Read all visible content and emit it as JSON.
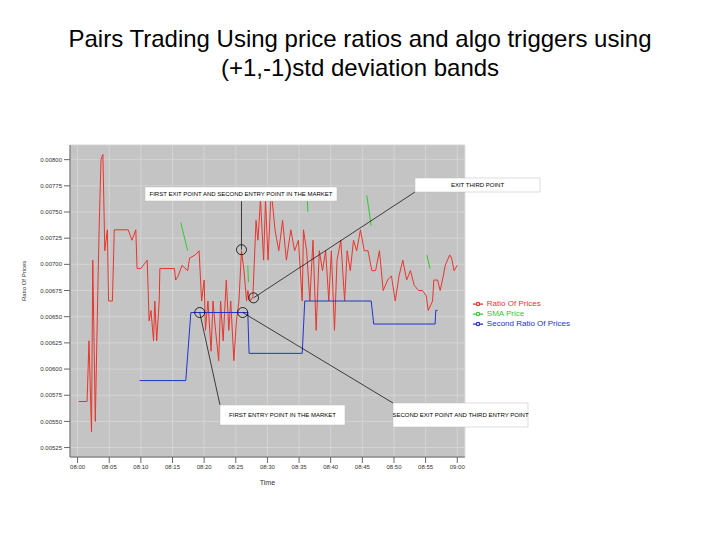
{
  "title": "Pairs Trading Using price ratios and algo triggers using (+1,-1)std deviation bands",
  "chart_data": {
    "type": "line",
    "x_label": "Time",
    "y_label": "Ratio Of Prices",
    "grid": true,
    "legend": "right",
    "xlim": [
      -1.2,
      61.2
    ],
    "xticks": [
      {
        "value": 0,
        "label": "08:00"
      },
      {
        "value": 5,
        "label": "08:05"
      },
      {
        "value": 10,
        "label": "08:10"
      },
      {
        "value": 15,
        "label": "08:15"
      },
      {
        "value": 20,
        "label": "08:20"
      },
      {
        "value": 25,
        "label": "08:25"
      },
      {
        "value": 30,
        "label": "08:30"
      },
      {
        "value": 35,
        "label": "08:35"
      },
      {
        "value": 40,
        "label": "08:40"
      },
      {
        "value": 45,
        "label": "08:45"
      },
      {
        "value": 50,
        "label": "08:50"
      },
      {
        "value": 55,
        "label": "08:55"
      },
      {
        "value": 60,
        "label": "09:00"
      }
    ],
    "ylim": [
      0.00516,
      0.00814
    ],
    "yticks": [
      {
        "value": 0.00525,
        "label": "0.00525"
      },
      {
        "value": 0.0055,
        "label": "0.00550"
      },
      {
        "value": 0.00575,
        "label": "0.00575"
      },
      {
        "value": 0.006,
        "label": "0.00600"
      },
      {
        "value": 0.00625,
        "label": "0.00625"
      },
      {
        "value": 0.0065,
        "label": "0.00650"
      },
      {
        "value": 0.00675,
        "label": "0.00675"
      },
      {
        "value": 0.007,
        "label": "0.00700"
      },
      {
        "value": 0.00725,
        "label": "0.00725"
      },
      {
        "value": 0.0075,
        "label": "0.00750"
      },
      {
        "value": 0.00775,
        "label": "0.00775"
      },
      {
        "value": 0.008,
        "label": "0.00800"
      }
    ],
    "series": [
      {
        "name": "Ratio Of Prices",
        "color": "#e8352c",
        "x": [
          0.2,
          1.5,
          1.8,
          2.2,
          2.4,
          2.8,
          3.2,
          3.4,
          3.7,
          4.0,
          4.3,
          4.7,
          4.9,
          5.5,
          5.8,
          8.0,
          8.6,
          9.2,
          9.4,
          10.0,
          11.0,
          11.3,
          11.6,
          12.0,
          12.2,
          12.5,
          12.9,
          13.0,
          15.3,
          15.5,
          15.9,
          16.5,
          17.4,
          17.7,
          18.6,
          19.2,
          19.6,
          20.0,
          20.2,
          20.6,
          21.1,
          21.4,
          21.8,
          22.3,
          22.6,
          23.0,
          23.5,
          23.9,
          24.2,
          24.7,
          25.1,
          25.5,
          25.9,
          26.3,
          26.7,
          26.9,
          27.3,
          27.7,
          28.2,
          28.5,
          28.9,
          29.4,
          29.7,
          30.1,
          30.6,
          31.2,
          31.8,
          32.4,
          33.0,
          33.7,
          34.3,
          34.9,
          35.5,
          35.7,
          36.2,
          36.7,
          37.2,
          37.7,
          38.2,
          38.7,
          39.2,
          39.7,
          40.1,
          40.6,
          41.0,
          41.6,
          42.2,
          42.6,
          43.1,
          43.6,
          44.1,
          44.7,
          45.3,
          45.9,
          46.5,
          47.1,
          47.7,
          48.3,
          49.0,
          49.6,
          50.2,
          50.8,
          51.4,
          52.0,
          52.6,
          53.2,
          53.9,
          54.5,
          55.1,
          55.4,
          56.1,
          56.3,
          56.9,
          57.3,
          57.8,
          58.1,
          58.8,
          59.1,
          59.5,
          60.0
        ],
        "values": [
          0.00569,
          0.00569,
          0.00627,
          0.0054,
          0.00704,
          0.0055,
          0.00675,
          0.00733,
          0.008,
          0.00805,
          0.00713,
          0.00733,
          0.00665,
          0.00665,
          0.00733,
          0.00733,
          0.00723,
          0.00733,
          0.00696,
          0.00696,
          0.00704,
          0.00646,
          0.00656,
          0.00627,
          0.00665,
          0.00627,
          0.00665,
          0.00696,
          0.00696,
          0.00685,
          0.00689,
          0.00699,
          0.00694,
          0.00706,
          0.00709,
          0.00713,
          0.00665,
          0.00685,
          0.00637,
          0.00665,
          0.00617,
          0.00665,
          0.00637,
          0.00608,
          0.00665,
          0.00627,
          0.00685,
          0.00637,
          0.00665,
          0.00608,
          0.00646,
          0.00665,
          0.00713,
          0.00694,
          0.00665,
          0.00675,
          0.00665,
          0.00669,
          0.00742,
          0.00723,
          0.00762,
          0.00704,
          0.00762,
          0.00704,
          0.00771,
          0.00733,
          0.00713,
          0.00742,
          0.00704,
          0.00733,
          0.00713,
          0.00723,
          0.00665,
          0.00733,
          0.00713,
          0.00665,
          0.00723,
          0.00637,
          0.00713,
          0.00694,
          0.00713,
          0.00665,
          0.00713,
          0.00637,
          0.00704,
          0.00723,
          0.00665,
          0.00713,
          0.00694,
          0.00723,
          0.00713,
          0.00733,
          0.00713,
          0.00713,
          0.00694,
          0.00694,
          0.00713,
          0.00675,
          0.00685,
          0.00689,
          0.00665,
          0.00689,
          0.00704,
          0.00685,
          0.00694,
          0.0068,
          0.00675,
          0.00675,
          0.0067,
          0.00656,
          0.00665,
          0.00685,
          0.00685,
          0.00675,
          0.00689,
          0.00699,
          0.00709,
          0.00706,
          0.00694,
          0.00699
        ]
      },
      {
        "name": "SMA Price",
        "color": "#2ecc2e",
        "x": [
          16.3,
          17.4,
          20.0,
          26.9,
          27.0,
          30.0,
          36.3,
          36.4,
          40.0,
          45.7,
          46.4,
          50.0,
          55.2,
          55.7
        ],
        "values": [
          0.0074,
          0.00713,
          null,
          0.00699,
          0.00683,
          null,
          0.00762,
          0.0075,
          null,
          0.00766,
          0.00737,
          null,
          0.00709,
          0.00696
        ]
      },
      {
        "name": "Second Ratio Of Prices",
        "color": "#2233cc",
        "x": [
          9.8,
          17.1,
          17.9,
          26.9,
          27.1,
          35.5,
          35.9,
          46.4,
          46.8,
          56.5,
          56.6,
          56.9
        ],
        "values": [
          0.00589,
          0.00589,
          0.00654,
          0.00654,
          0.00615,
          0.00615,
          0.00665,
          0.00665,
          0.00643,
          0.00643,
          0.00656,
          0.00656
        ]
      }
    ],
    "annotations": [
      {
        "text": "FIRST EXIT POINT AND SECOND ENTRY POINT IN THE MARKET",
        "x": 25.9,
        "y": 0.00714
      },
      {
        "text": "EXIT THIRD POINT",
        "x": 27.8,
        "y": 0.00668
      },
      {
        "text": "FIRST ENTRY POINT IN THE MARKET",
        "x": 19.3,
        "y": 0.00654
      },
      {
        "text": "SECOND EXIT POINT AND THIRD ENTRY POINT",
        "x": 26.1,
        "y": 0.00654
      }
    ]
  }
}
